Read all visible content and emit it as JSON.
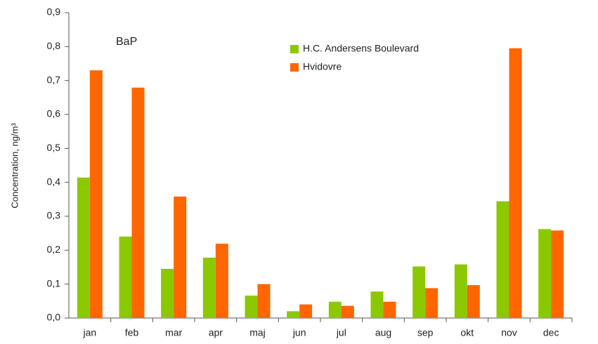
{
  "chart_data": {
    "type": "bar",
    "y_label": "Concentration, ng/m³",
    "annotation": "BaP",
    "categories": [
      "jan",
      "feb",
      "mar",
      "apr",
      "maj",
      "jun",
      "jul",
      "aug",
      "sep",
      "okt",
      "nov",
      "dec"
    ],
    "series": [
      {
        "name": "H.C. Andersens Boulevard",
        "color": "#8cc800",
        "values": [
          0.414,
          0.24,
          0.145,
          0.178,
          0.066,
          0.02,
          0.048,
          0.078,
          0.152,
          0.158,
          0.344,
          0.262
        ]
      },
      {
        "name": "Hvidovre",
        "color": "#ff6600",
        "values": [
          0.73,
          0.679,
          0.358,
          0.219,
          0.1,
          0.04,
          0.036,
          0.048,
          0.088,
          0.097,
          0.795,
          0.258
        ]
      }
    ],
    "ylim": [
      0,
      0.9
    ],
    "yticks": [
      {
        "value": 0,
        "label": "0,0"
      },
      {
        "value": 0.1,
        "label": "0,1"
      },
      {
        "value": 0.2,
        "label": "0,2"
      },
      {
        "value": 0.3,
        "label": "0,3"
      },
      {
        "value": 0.4,
        "label": "0,4"
      },
      {
        "value": 0.5,
        "label": "0,5"
      },
      {
        "value": 0.6,
        "label": "0,6"
      },
      {
        "value": 0.7,
        "label": "0,7"
      },
      {
        "value": 0.8,
        "label": "0,8"
      },
      {
        "value": 0.9,
        "label": "0,9"
      }
    ]
  }
}
